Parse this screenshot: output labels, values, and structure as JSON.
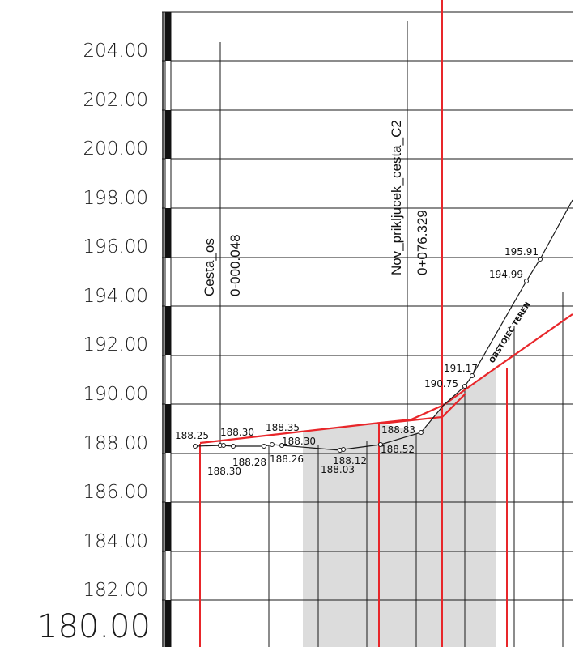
{
  "elevation_labels": [
    "204.00",
    "202.00",
    "200.00",
    "198.00",
    "196.00",
    "194.00",
    "192.00",
    "190.00",
    "188.00",
    "186.00",
    "184.00",
    "182.00",
    "180.00"
  ],
  "elevation_values": [
    204,
    202,
    200,
    198,
    196,
    194,
    192,
    190,
    188,
    186,
    184,
    182,
    180
  ],
  "stations": [
    {
      "name": "Cesta_os",
      "chainage": "0-000.048"
    },
    {
      "name": "Nov_prikljucek_cesta_C2",
      "chainage": "0+076.329"
    }
  ],
  "point_labels": [
    "188.25",
    "188.30",
    "188.35",
    "188.30",
    "188.83",
    "191.17",
    "190.75",
    "195.91",
    "194.99",
    "188.30",
    "188.28",
    "188.26",
    "188.12",
    "188.03",
    "188.52"
  ],
  "terrain_label": "OBSTOJEČ TEREN",
  "colors": {
    "design_line": "#e8262a",
    "terrain_line": "#1a1a1a",
    "fill": "#dcdcdc",
    "grid": "#1a1a1a"
  }
}
